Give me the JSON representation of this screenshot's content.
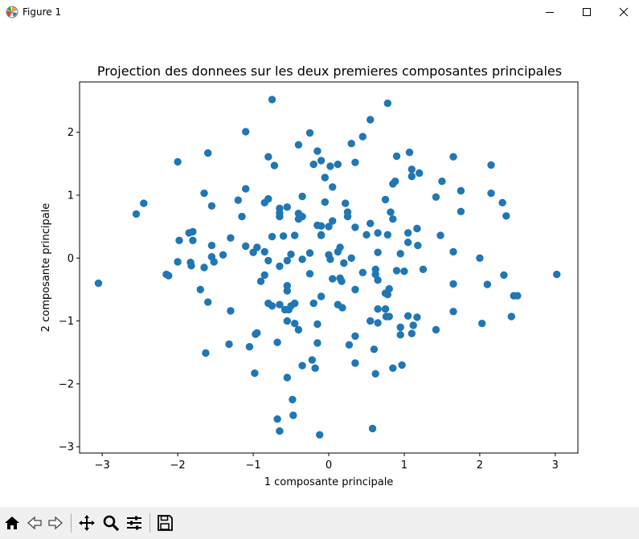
{
  "window": {
    "title": "Figure 1",
    "controls": [
      "minimize",
      "maximize",
      "close"
    ]
  },
  "toolbar": {
    "buttons": [
      "home-icon",
      "back-icon",
      "forward-icon",
      "pan-icon",
      "zoom-icon",
      "configure-subplots-icon",
      "save-icon"
    ]
  },
  "colors": {
    "marker": "#1f77b4",
    "toolbar_bg": "#f0f0f0"
  },
  "chart_data": {
    "type": "scatter",
    "title": "Projection des donnees sur les deux premieres composantes principales",
    "xlabel": "1 composante principale",
    "ylabel": "2 composante principale",
    "xlim": [
      -3.3,
      3.3
    ],
    "ylim": [
      -3.1,
      2.8
    ],
    "xticks": [
      -3,
      -2,
      -1,
      0,
      1,
      2,
      3
    ],
    "yticks": [
      -3,
      -2,
      -1,
      0,
      1,
      2
    ],
    "xtick_labels": [
      "−3",
      "−2",
      "−1",
      "0",
      "1",
      "2",
      "3"
    ],
    "ytick_labels": [
      "−3",
      "−2",
      "−1",
      "0",
      "1",
      "2"
    ],
    "grid": false,
    "legend": false,
    "marker_color": "#1f77b4",
    "points": [
      [
        -0.75,
        2.52
      ],
      [
        0.78,
        2.46
      ],
      [
        0.55,
        2.2
      ],
      [
        -1.1,
        2.01
      ],
      [
        -0.25,
        1.99
      ],
      [
        0.45,
        1.93
      ],
      [
        0.3,
        1.82
      ],
      [
        -0.4,
        1.8
      ],
      [
        -2.0,
        1.53
      ],
      [
        -1.6,
        1.67
      ],
      [
        -0.8,
        1.61
      ],
      [
        -0.15,
        1.7
      ],
      [
        0.9,
        1.62
      ],
      [
        1.07,
        1.68
      ],
      [
        1.65,
        1.61
      ],
      [
        0.35,
        1.52
      ],
      [
        -0.1,
        1.55
      ],
      [
        -0.2,
        1.49
      ],
      [
        0.02,
        1.46
      ],
      [
        0.12,
        1.49
      ],
      [
        -0.72,
        1.47
      ],
      [
        1.1,
        1.41
      ],
      [
        1.2,
        1.35
      ],
      [
        2.15,
        1.48
      ],
      [
        -0.05,
        1.28
      ],
      [
        1.1,
        1.3
      ],
      [
        1.5,
        1.22
      ],
      [
        0.88,
        1.22
      ],
      [
        0.85,
        1.18
      ],
      [
        0.05,
        1.13
      ],
      [
        -1.1,
        1.1
      ],
      [
        -1.65,
        1.03
      ],
      [
        2.15,
        1.03
      ],
      [
        1.75,
        1.07
      ],
      [
        -0.35,
        0.98
      ],
      [
        1.42,
        0.97
      ],
      [
        -0.8,
        0.94
      ],
      [
        -1.2,
        0.92
      ],
      [
        0.75,
        0.93
      ],
      [
        -0.85,
        0.88
      ],
      [
        2.3,
        0.88
      ],
      [
        -2.45,
        0.87
      ],
      [
        0.22,
        0.87
      ],
      [
        -0.05,
        0.89
      ],
      [
        -1.55,
        0.83
      ],
      [
        -0.55,
        0.81
      ],
      [
        -0.65,
        0.79
      ],
      [
        0.82,
        0.73
      ],
      [
        -0.65,
        0.72
      ],
      [
        -0.4,
        0.71
      ],
      [
        0.25,
        0.73
      ],
      [
        1.75,
        0.74
      ],
      [
        -0.35,
        0.66
      ],
      [
        -2.55,
        0.7
      ],
      [
        -0.65,
        0.66
      ],
      [
        2.35,
        0.67
      ],
      [
        -1.15,
        0.66
      ],
      [
        0.25,
        0.66
      ],
      [
        0.85,
        0.62
      ],
      [
        0.05,
        0.59
      ],
      [
        -0.4,
        0.62
      ],
      [
        0.55,
        0.55
      ],
      [
        -0.1,
        0.51
      ],
      [
        -0.15,
        0.52
      ],
      [
        0.0,
        0.5
      ],
      [
        1.17,
        0.47
      ],
      [
        0.35,
        0.49
      ],
      [
        -1.8,
        0.42
      ],
      [
        -1.85,
        0.4
      ],
      [
        0.65,
        0.4
      ],
      [
        1.05,
        0.4
      ],
      [
        -0.1,
        0.37
      ],
      [
        -0.45,
        0.36
      ],
      [
        0.5,
        0.37
      ],
      [
        -0.75,
        0.34
      ],
      [
        -0.6,
        0.35
      ],
      [
        1.48,
        0.36
      ],
      [
        -1.98,
        0.28
      ],
      [
        -1.8,
        0.28
      ],
      [
        -1.3,
        0.32
      ],
      [
        -0.1,
        0.36
      ],
      [
        0.78,
        0.37
      ],
      [
        1.05,
        0.25
      ],
      [
        -1.55,
        0.2
      ],
      [
        -1.1,
        0.19
      ],
      [
        -0.95,
        0.17
      ],
      [
        -0.85,
        0.1
      ],
      [
        0.15,
        0.17
      ],
      [
        1.18,
        0.2
      ],
      [
        -1.4,
        0.05
      ],
      [
        -1.0,
        0.09
      ],
      [
        0.12,
        0.1
      ],
      [
        0.65,
        0.09
      ],
      [
        0.95,
        0.07
      ],
      [
        1.65,
        0.1
      ],
      [
        -1.55,
        0.02
      ],
      [
        -0.5,
        0.06
      ],
      [
        -0.25,
        0.08
      ],
      [
        0.0,
        0.05
      ],
      [
        -2.0,
        -0.06
      ],
      [
        -1.83,
        -0.07
      ],
      [
        -1.52,
        -0.06
      ],
      [
        -0.8,
        -0.04
      ],
      [
        -0.55,
        -0.04
      ],
      [
        -0.35,
        -0.02
      ],
      [
        0.2,
        -0.08
      ],
      [
        0.3,
        0.0
      ],
      [
        0.02,
        -0.02
      ],
      [
        2.0,
        0.0
      ],
      [
        -1.82,
        -0.12
      ],
      [
        -1.65,
        -0.15
      ],
      [
        -0.65,
        -0.13
      ],
      [
        0.9,
        -0.2
      ],
      [
        1.0,
        -0.21
      ],
      [
        1.25,
        -0.18
      ],
      [
        0.62,
        -0.18
      ],
      [
        -2.15,
        -0.26
      ],
      [
        -2.12,
        -0.28
      ],
      [
        -0.85,
        -0.27
      ],
      [
        -0.25,
        -0.25
      ],
      [
        0.45,
        -0.23
      ],
      [
        0.62,
        -0.26
      ],
      [
        2.32,
        -0.27
      ],
      [
        3.02,
        -0.26
      ],
      [
        -0.9,
        -0.37
      ],
      [
        0.05,
        -0.33
      ],
      [
        0.15,
        -0.32
      ],
      [
        0.17,
        -0.37
      ],
      [
        0.65,
        -0.35
      ],
      [
        -3.05,
        -0.4
      ],
      [
        -0.55,
        -0.44
      ],
      [
        1.65,
        -0.41
      ],
      [
        2.1,
        -0.42
      ],
      [
        -1.7,
        -0.5
      ],
      [
        -0.55,
        -0.52
      ],
      [
        0.35,
        -0.5
      ],
      [
        0.8,
        -0.49
      ],
      [
        0.78,
        -0.58
      ],
      [
        0.75,
        -0.56
      ],
      [
        2.45,
        -0.6
      ],
      [
        2.5,
        -0.6
      ],
      [
        -1.6,
        -0.7
      ],
      [
        -0.8,
        -0.72
      ],
      [
        -0.65,
        -0.74
      ],
      [
        -0.45,
        -0.72
      ],
      [
        -0.5,
        -0.76
      ],
      [
        -0.2,
        -0.72
      ],
      [
        -0.1,
        -0.61
      ],
      [
        0.12,
        -0.74
      ],
      [
        0.18,
        -0.79
      ],
      [
        -0.75,
        -0.76
      ],
      [
        -0.58,
        -0.82
      ],
      [
        -0.53,
        -0.82
      ],
      [
        -1.3,
        -0.84
      ],
      [
        0.65,
        -0.81
      ],
      [
        0.75,
        -0.81
      ],
      [
        1.65,
        -0.85
      ],
      [
        0.76,
        -0.93
      ],
      [
        0.8,
        -0.93
      ],
      [
        1.05,
        -0.92
      ],
      [
        1.17,
        -0.94
      ],
      [
        2.42,
        -0.93
      ],
      [
        -0.55,
        -1.0
      ],
      [
        -0.45,
        -1.04
      ],
      [
        0.55,
        -1.0
      ],
      [
        0.65,
        -1.03
      ],
      [
        -0.15,
        -1.05
      ],
      [
        0.95,
        -1.1
      ],
      [
        1.12,
        -1.07
      ],
      [
        2.03,
        -1.04
      ],
      [
        -0.4,
        -1.14
      ],
      [
        1.42,
        -1.14
      ],
      [
        -0.95,
        -1.19
      ],
      [
        -0.97,
        -1.21
      ],
      [
        0.95,
        -1.22
      ],
      [
        1.1,
        -1.2
      ],
      [
        0.35,
        -1.24
      ],
      [
        -0.68,
        -1.34
      ],
      [
        -1.32,
        -1.37
      ],
      [
        -1.05,
        -1.41
      ],
      [
        -0.15,
        -1.35
      ],
      [
        0.27,
        -1.38
      ],
      [
        0.6,
        -1.45
      ],
      [
        -1.63,
        -1.51
      ],
      [
        -0.22,
        -1.62
      ],
      [
        0.35,
        -1.67
      ],
      [
        -0.35,
        -1.71
      ],
      [
        -0.18,
        -1.75
      ],
      [
        0.85,
        -1.75
      ],
      [
        0.97,
        -1.7
      ],
      [
        -0.98,
        -1.83
      ],
      [
        0.62,
        -1.84
      ],
      [
        -0.55,
        -1.9
      ],
      [
        -0.48,
        -2.25
      ],
      [
        -0.68,
        -2.56
      ],
      [
        -0.47,
        -2.5
      ],
      [
        0.58,
        -2.71
      ],
      [
        -0.65,
        -2.75
      ],
      [
        -0.12,
        -2.81
      ]
    ]
  }
}
